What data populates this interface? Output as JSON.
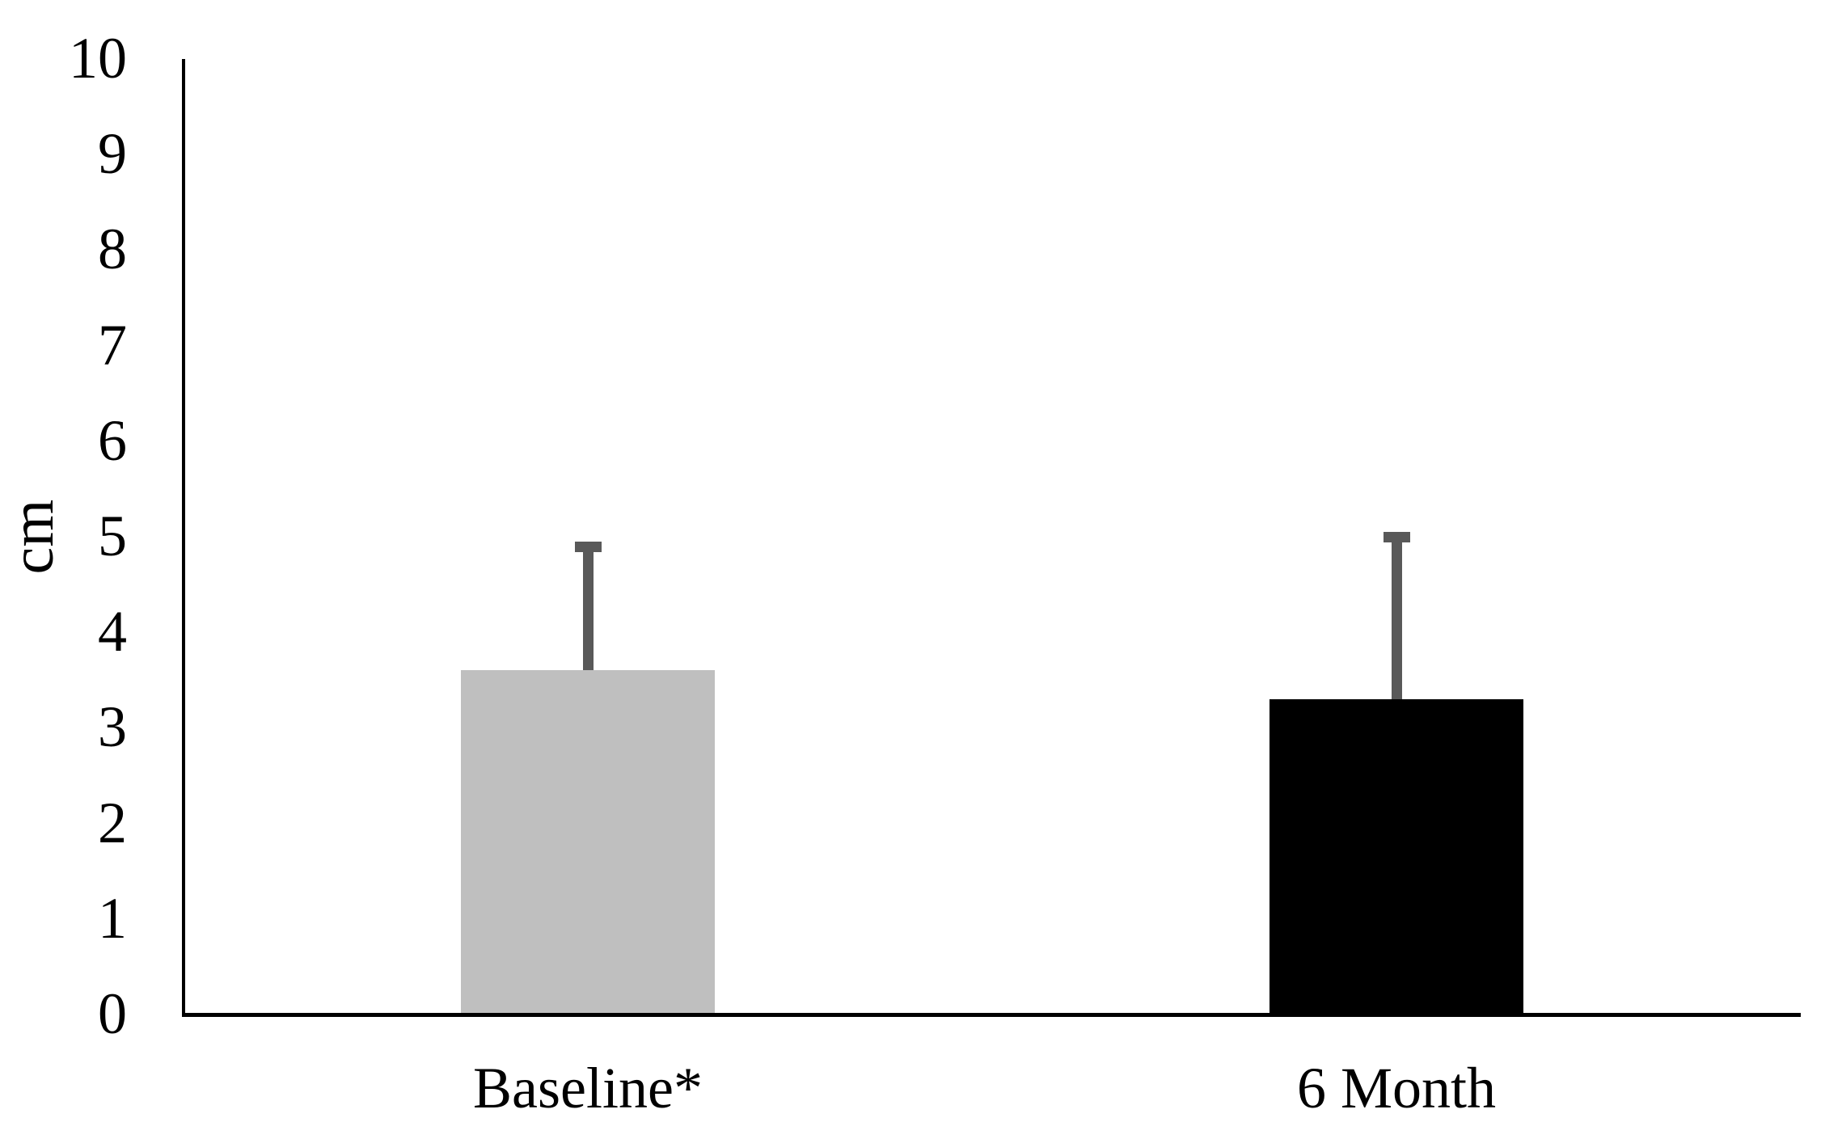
{
  "chart_data": {
    "type": "bar",
    "title": "",
    "xlabel": "",
    "ylabel": "cm",
    "categories": [
      "Baseline*",
      "6 Month"
    ],
    "values": [
      3.6,
      3.3
    ],
    "error_plus": [
      1.35,
      1.75
    ],
    "error_tops": [
      4.95,
      5.05
    ],
    "ylim": [
      0,
      10
    ],
    "yticks": [
      0,
      1,
      2,
      3,
      4,
      5,
      6,
      7,
      8,
      9,
      10
    ],
    "grid": false,
    "legend_position": "none",
    "colors": {
      "bars": [
        "#bfbfbf",
        "#000000"
      ],
      "error_bar": "#595959",
      "axis": "#000000",
      "text": "#000000",
      "background": "#ffffff"
    }
  }
}
